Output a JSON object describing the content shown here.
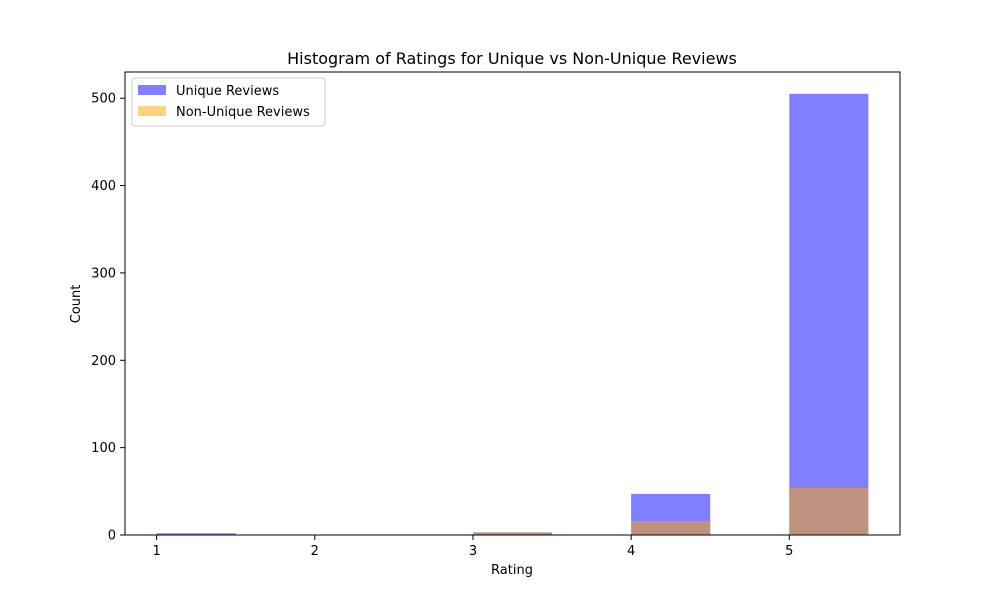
{
  "chart_data": {
    "type": "bar",
    "title": "Histogram of Ratings for Unique vs Non-Unique Reviews",
    "xlabel": "Rating",
    "ylabel": "Count",
    "xlim": [
      0.8,
      5.7
    ],
    "ylim": [
      0,
      530
    ],
    "xticks": [
      1,
      2,
      3,
      4,
      5
    ],
    "yticks": [
      0,
      100,
      200,
      300,
      400,
      500
    ],
    "bin_width": 0.5,
    "legend_position": "top-left",
    "series": [
      {
        "name": "Unique Reviews",
        "color": "#0000ff",
        "opacity": 0.5,
        "bins": [
          {
            "start": 1.0,
            "count": 2
          },
          {
            "start": 3.0,
            "count": 3
          },
          {
            "start": 4.0,
            "count": 47
          },
          {
            "start": 5.0,
            "count": 505
          }
        ]
      },
      {
        "name": "Non-Unique Reviews",
        "color": "#ffa500",
        "opacity": 0.5,
        "bins": [
          {
            "start": 3.0,
            "count": 3
          },
          {
            "start": 4.0,
            "count": 16
          },
          {
            "start": 5.0,
            "count": 54
          }
        ]
      }
    ]
  }
}
